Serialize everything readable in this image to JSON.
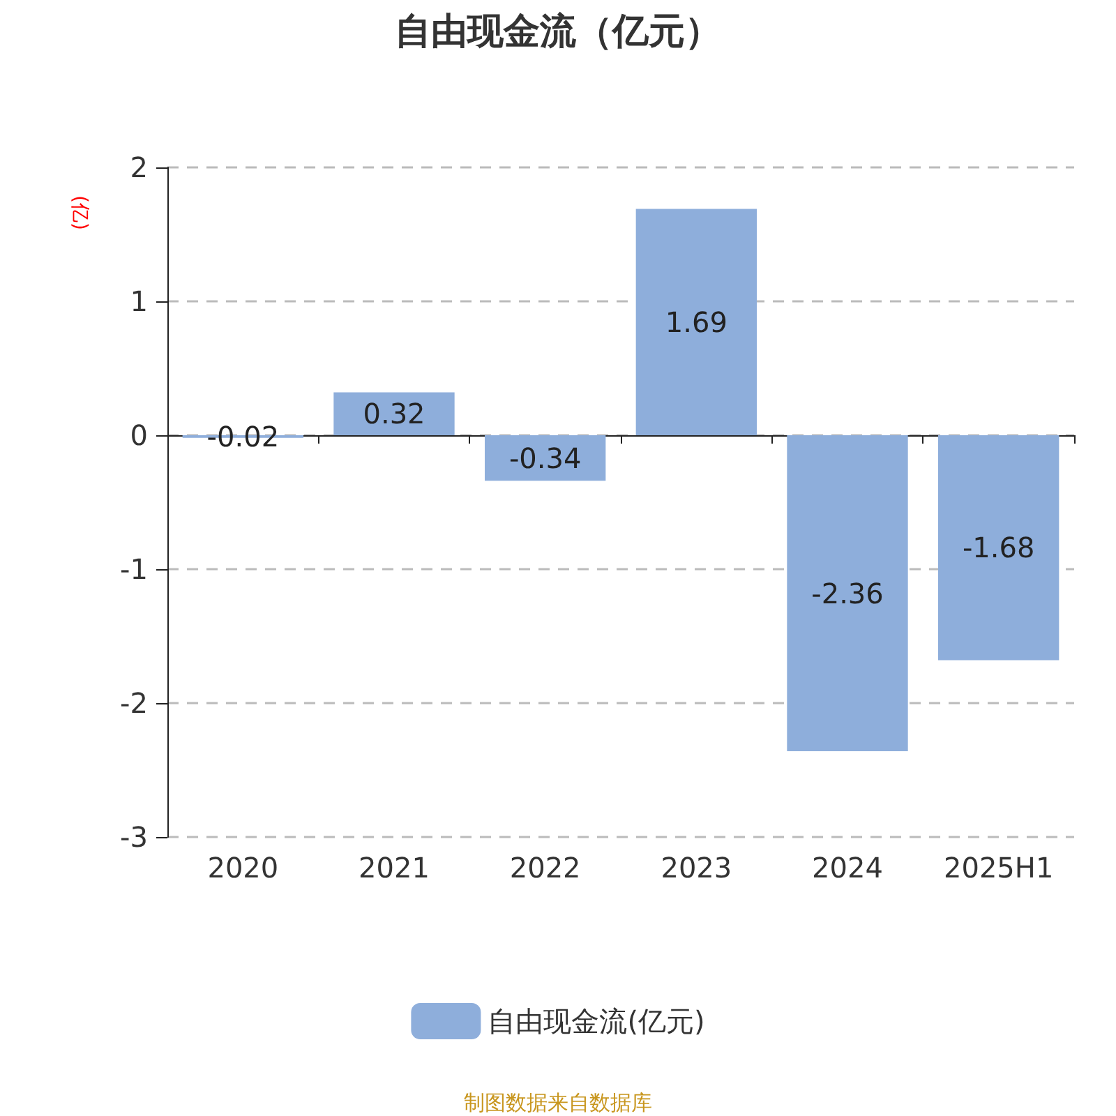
{
  "chart_data": {
    "type": "bar",
    "title": "自由现金流（亿元）",
    "ylabel": "(亿)",
    "categories": [
      "2020",
      "2021",
      "2022",
      "2023",
      "2024",
      "2025H1"
    ],
    "series": [
      {
        "name": "自由现金流(亿元)",
        "color": "#8eaedb",
        "values": [
          -0.02,
          0.32,
          -0.34,
          1.69,
          -2.36,
          -1.68
        ]
      }
    ],
    "ylim": [
      -3,
      2
    ],
    "yticks": [
      -3,
      -2,
      -1,
      0,
      1,
      2
    ],
    "grid": "y",
    "legend": "bottom",
    "data_labels": true,
    "annotations": [
      "制图数据来自数据库"
    ]
  }
}
